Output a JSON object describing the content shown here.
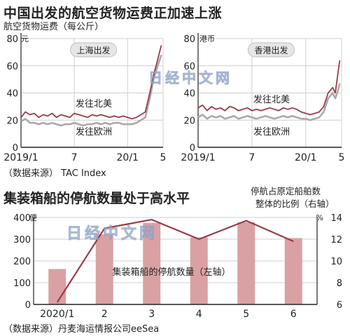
{
  "header": {
    "title": "中国出发的航空货物运费正加速上涨",
    "unit_label": "航空货物运费（每公斤）",
    "source1": "（数据来源） TAC Index",
    "title2": "集装箱船的停航数量处于高水平",
    "right_axis_label_line1": "停航占原定船舶数",
    "right_axis_label_line2": "整体的比例（右轴）",
    "source2": "（数据来源）丹麦海运情报公司eeSea"
  },
  "watermark": "日经中文网",
  "colors": {
    "north_america": "#9B3A4A",
    "europe": "#AAAAAA",
    "bars": "#D9A1A3",
    "ratio_line": "#9B3A4A",
    "badge_bg": "#E6E6E6"
  },
  "chart_data": [
    {
      "type": "line",
      "badge": "上海出发",
      "ylabel": "元",
      "ylim": [
        0,
        80
      ],
      "yticks": [
        0,
        20,
        40,
        60,
        80
      ],
      "xlim": [
        0,
        16
      ],
      "xticks": [
        {
          "x": 0,
          "label": "2019/1"
        },
        {
          "x": 6,
          "label": "7"
        },
        {
          "x": 12,
          "label": "20/1"
        },
        {
          "x": 16,
          "label": "5"
        }
      ],
      "grid": true,
      "series": [
        {
          "name": "发往北美",
          "x": [
            0,
            0.5,
            1,
            1.5,
            2,
            2.5,
            3,
            3.5,
            4,
            4.5,
            5,
            5.5,
            6,
            6.5,
            7,
            7.5,
            8,
            8.5,
            9,
            9.5,
            10,
            10.5,
            11,
            11.5,
            12,
            12.5,
            13,
            13.5,
            14,
            14.5,
            15,
            15.3,
            15.6,
            15.8
          ],
          "values": [
            22,
            26,
            24,
            25,
            22,
            24,
            23,
            25,
            22,
            24,
            23,
            22,
            25,
            24,
            23,
            22,
            24,
            23,
            24,
            23,
            22,
            23,
            22,
            23,
            22,
            21,
            22,
            24,
            26,
            40,
            55,
            62,
            70,
            75
          ]
        },
        {
          "name": "发往欧洲",
          "x": [
            0,
            0.5,
            1,
            1.5,
            2,
            2.5,
            3,
            3.5,
            4,
            4.5,
            5,
            5.5,
            6,
            6.5,
            7,
            7.5,
            8,
            8.5,
            9,
            9.5,
            10,
            10.5,
            11,
            11.5,
            12,
            12.5,
            13,
            13.5,
            14,
            14.5,
            15,
            15.3,
            15.6,
            15.8
          ],
          "values": [
            19,
            21,
            18,
            18,
            17,
            18,
            17,
            18,
            17,
            16,
            17,
            17,
            18,
            17,
            16,
            17,
            17,
            18,
            17,
            18,
            17,
            18,
            18,
            17,
            17,
            17,
            18,
            20,
            22,
            36,
            52,
            58,
            64,
            68
          ]
        }
      ]
    },
    {
      "type": "line",
      "badge": "香港出发",
      "ylabel": "港币",
      "ylim": [
        0,
        80
      ],
      "yticks": [
        0,
        20,
        40,
        60,
        80
      ],
      "xlim": [
        0,
        16
      ],
      "xticks": [
        {
          "x": 0,
          "label": "2019/1"
        },
        {
          "x": 6,
          "label": "7"
        },
        {
          "x": 12,
          "label": "20/1"
        },
        {
          "x": 16,
          "label": "5"
        }
      ],
      "grid": true,
      "series": [
        {
          "name": "发往北美",
          "x": [
            0,
            0.5,
            1,
            1.5,
            2,
            2.5,
            3,
            3.5,
            4,
            4.5,
            5,
            5.5,
            6,
            6.5,
            7,
            7.5,
            8,
            8.5,
            9,
            9.5,
            10,
            10.5,
            11,
            11.5,
            12,
            12.5,
            13,
            13.5,
            14,
            14.5,
            15,
            15.3,
            15.6,
            15.8
          ],
          "values": [
            29,
            31,
            27,
            30,
            28,
            29,
            27,
            30,
            29,
            27,
            28,
            29,
            27,
            28,
            27,
            28,
            29,
            28,
            27,
            29,
            28,
            29,
            28,
            26,
            25,
            24,
            25,
            26,
            30,
            40,
            44,
            40,
            55,
            64
          ]
        },
        {
          "name": "发往欧洲",
          "x": [
            0,
            0.5,
            1,
            1.5,
            2,
            2.5,
            3,
            3.5,
            4,
            4.5,
            5,
            5.5,
            6,
            6.5,
            7,
            7.5,
            8,
            8.5,
            9,
            9.5,
            10,
            10.5,
            11,
            11.5,
            12,
            12.5,
            13,
            13.5,
            14,
            14.5,
            15,
            15.3,
            15.6,
            15.8
          ],
          "values": [
            22,
            24,
            21,
            23,
            22,
            23,
            21,
            22,
            23,
            21,
            22,
            23,
            22,
            21,
            22,
            23,
            22,
            21,
            22,
            23,
            22,
            23,
            22,
            21,
            21,
            20,
            21,
            22,
            26,
            36,
            40,
            36,
            42,
            47
          ]
        }
      ]
    },
    {
      "type": "bar",
      "categories": [
        "2020/1",
        "2",
        "3",
        "4",
        "5",
        "6"
      ],
      "series": [
        {
          "name": "集装箱船的停航数量（左轴）",
          "values": [
            163,
            322,
            375,
            308,
            378,
            305
          ]
        },
        {
          "values": [
            6.2,
            13.0,
            13.8,
            12.0,
            13.7,
            11.8
          ]
        }
      ],
      "ylabel_left": "便",
      "ylim_left": [
        0,
        400
      ],
      "yticks_left": [
        0,
        100,
        200,
        300,
        400
      ],
      "ylabel_right": "%",
      "ylim_right": [
        6,
        14
      ],
      "yticks_right": [
        6,
        8,
        10,
        12,
        14
      ],
      "grid": true
    }
  ]
}
